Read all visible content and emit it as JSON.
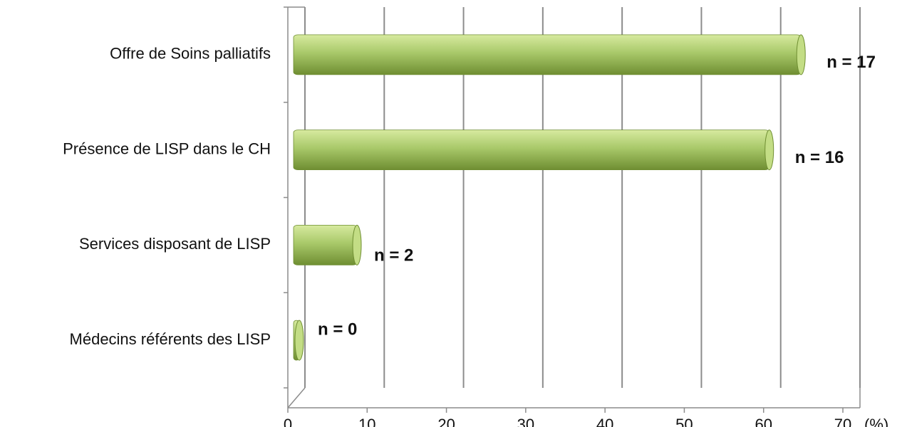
{
  "chart_data": {
    "type": "bar",
    "orientation": "horizontal",
    "title": "",
    "xlabel": "(%)",
    "ylabel": "",
    "categories": [
      "Offre de Soins palliatifs",
      "Présence de LISP dans le CH",
      "Services disposant de LISP",
      "Médecins référents des LISP"
    ],
    "values": [
      64,
      60,
      8,
      0
    ],
    "data_labels": [
      "n = 17",
      "n = 16",
      "n = 2",
      "n = 0"
    ],
    "xlim": [
      0,
      70
    ],
    "x_ticks": [
      "0",
      "10",
      "20",
      "30",
      "40",
      "50",
      "60",
      "70"
    ],
    "grid": true,
    "legend": "none",
    "bar_style": "3d-cylinder",
    "colors": {
      "bar_light": "#d7ea9f",
      "bar_mid": "#a9c96a",
      "bar_dark": "#6f8e32",
      "bar_cap": "#c3dd85",
      "grid": "#8c8c8c"
    }
  }
}
